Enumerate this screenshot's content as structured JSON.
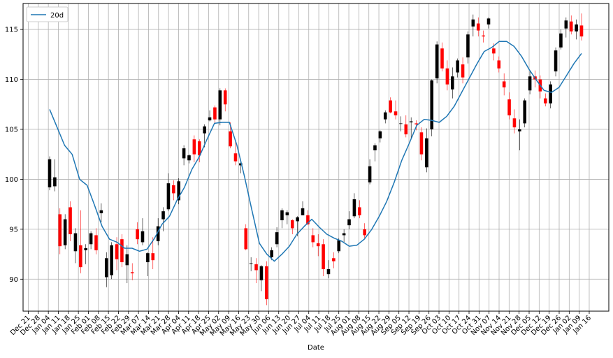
{
  "chart_data": {
    "type": "candlestick",
    "title": "",
    "xlabel": "Date",
    "ylabel": "",
    "ylim": [
      86.8,
      117.6
    ],
    "grid": true,
    "legend_position": "top-left",
    "x_ticks": [
      "Dec 21",
      "Dec 28",
      "Jan 04",
      "Jan 11",
      "Jan 18",
      "Jan 25",
      "Feb 01",
      "Feb 08",
      "Feb 15",
      "Feb 22",
      "Feb 29",
      "Mar 07",
      "Mar 14",
      "Mar 21",
      "Mar 28",
      "Apr 04",
      "Apr 11",
      "Apr 18",
      "Apr 25",
      "May 02",
      "May 09",
      "May 16",
      "May 23",
      "May 30",
      "Jun 06",
      "Jun 13",
      "Jun 20",
      "Jun 27",
      "Jul 04",
      "Jul 11",
      "Jul 18",
      "Jul 25",
      "Aug 01",
      "Aug 08",
      "Aug 15",
      "Aug 22",
      "Aug 29",
      "Sep 05",
      "Sep 12",
      "Sep 19",
      "Sep 26",
      "Oct 03",
      "Oct 10",
      "Oct 17",
      "Oct 24",
      "Oct 31",
      "Nov 07",
      "Nov 14",
      "Nov 21",
      "Nov 28",
      "Dec 05",
      "Dec 12",
      "Dec 19",
      "Dec 26",
      "Jan 02",
      "Jan 09",
      "Jan 16"
    ],
    "y_ticks": [
      90,
      95,
      100,
      105,
      110,
      115
    ],
    "up_color": "#000000",
    "down_color": "#ff0000",
    "series": [
      {
        "name": "20d",
        "color": "#1f77b4",
        "values": [
          107.0,
          105.2,
          103.4,
          102.5,
          100.0,
          99.4,
          97.4,
          95.3,
          94.0,
          93.7,
          93.1,
          93.1,
          92.8,
          93.0,
          94.1,
          95.5,
          96.3,
          97.9,
          99.2,
          101.0,
          102.3,
          104.0,
          105.6,
          105.7,
          105.7,
          103.4,
          100.3,
          96.9,
          93.6,
          92.5,
          91.8,
          92.5,
          93.3,
          94.5,
          95.3,
          96.0,
          95.2,
          94.5,
          94.1,
          93.8,
          93.3,
          93.4,
          94.0,
          95.0,
          96.3,
          97.8,
          99.7,
          101.9,
          103.6,
          105.4,
          106.0,
          105.9,
          105.7,
          106.3,
          107.3,
          108.7,
          110.1,
          111.5,
          112.8,
          113.2,
          113.8,
          113.8,
          113.3,
          112.3,
          111.0,
          109.9,
          108.9,
          108.7,
          109.2,
          110.4,
          111.6,
          112.6
        ]
      }
    ],
    "candles": [
      {
        "o": 99.2,
        "h": 102.3,
        "l": 98.9,
        "c": 102.0
      },
      {
        "o": 99.3,
        "h": 102.0,
        "l": 98.8,
        "c": 100.2
      },
      {
        "o": 96.5,
        "h": 97.1,
        "l": 92.5,
        "c": 93.3
      },
      {
        "o": 93.4,
        "h": 96.5,
        "l": 93.0,
        "c": 96.0
      },
      {
        "o": 97.2,
        "h": 97.8,
        "l": 93.8,
        "c": 94.5
      },
      {
        "o": 92.8,
        "h": 95.1,
        "l": 91.6,
        "c": 94.6
      },
      {
        "o": 93.4,
        "h": 96.9,
        "l": 90.6,
        "c": 91.2
      },
      {
        "o": 92.9,
        "h": 93.5,
        "l": 91.5,
        "c": 93.1
      },
      {
        "o": 93.5,
        "h": 94.8,
        "l": 93.0,
        "c": 94.6
      },
      {
        "o": 94.4,
        "h": 95.1,
        "l": 92.5,
        "c": 92.9
      },
      {
        "o": 96.6,
        "h": 97.6,
        "l": 95.7,
        "c": 96.9
      },
      {
        "o": 90.2,
        "h": 92.7,
        "l": 89.2,
        "c": 92.1
      },
      {
        "o": 90.4,
        "h": 93.7,
        "l": 90.0,
        "c": 93.4
      },
      {
        "o": 93.5,
        "h": 94.2,
        "l": 90.9,
        "c": 92.0
      },
      {
        "o": 94.0,
        "h": 94.5,
        "l": 91.2,
        "c": 91.7
      },
      {
        "o": 91.4,
        "h": 93.4,
        "l": 89.6,
        "c": 92.5
      },
      {
        "o": 90.7,
        "h": 91.6,
        "l": 89.9,
        "c": 90.6
      },
      {
        "o": 95.0,
        "h": 95.7,
        "l": 93.5,
        "c": 94.0
      },
      {
        "o": 93.7,
        "h": 96.1,
        "l": 93.4,
        "c": 94.8
      },
      {
        "o": 91.7,
        "h": 92.7,
        "l": 90.3,
        "c": 92.6
      },
      {
        "o": 92.6,
        "h": 94.2,
        "l": 91.0,
        "c": 91.9
      },
      {
        "o": 93.8,
        "h": 96.1,
        "l": 93.4,
        "c": 95.3
      },
      {
        "o": 96.0,
        "h": 97.2,
        "l": 94.8,
        "c": 96.8
      },
      {
        "o": 97.0,
        "h": 100.6,
        "l": 96.8,
        "c": 99.6
      },
      {
        "o": 99.4,
        "h": 99.9,
        "l": 97.9,
        "c": 98.6
      },
      {
        "o": 97.9,
        "h": 100.1,
        "l": 97.5,
        "c": 99.8
      },
      {
        "o": 102.1,
        "h": 103.4,
        "l": 101.4,
        "c": 103.1
      },
      {
        "o": 101.9,
        "h": 102.5,
        "l": 101.6,
        "c": 102.4
      },
      {
        "o": 104.0,
        "h": 104.4,
        "l": 101.7,
        "c": 102.5
      },
      {
        "o": 103.8,
        "h": 104.0,
        "l": 101.7,
        "c": 102.4
      },
      {
        "o": 104.6,
        "h": 105.5,
        "l": 103.2,
        "c": 105.3
      },
      {
        "o": 105.9,
        "h": 106.9,
        "l": 105.8,
        "c": 106.2
      },
      {
        "o": 107.2,
        "h": 107.4,
        "l": 105.6,
        "c": 106.0
      },
      {
        "o": 106.0,
        "h": 109.1,
        "l": 105.4,
        "c": 108.9
      },
      {
        "o": 108.9,
        "h": 109.1,
        "l": 106.8,
        "c": 107.5
      },
      {
        "o": 104.8,
        "h": 105.7,
        "l": 103.1,
        "c": 103.3
      },
      {
        "o": 102.6,
        "h": 103.8,
        "l": 101.4,
        "c": 101.8
      },
      {
        "o": 101.4,
        "h": 101.8,
        "l": 100.6,
        "c": 101.6
      },
      {
        "o": 95.1,
        "h": 95.5,
        "l": 92.9,
        "c": 93.0
      },
      {
        "o": 91.6,
        "h": 92.2,
        "l": 90.8,
        "c": 91.6
      },
      {
        "o": 91.5,
        "h": 92.1,
        "l": 89.6,
        "c": 90.9
      },
      {
        "o": 89.9,
        "h": 91.4,
        "l": 88.8,
        "c": 91.3
      },
      {
        "o": 91.3,
        "h": 91.8,
        "l": 87.4,
        "c": 88.0
      },
      {
        "o": 92.2,
        "h": 93.2,
        "l": 91.9,
        "c": 92.9
      },
      {
        "o": 93.5,
        "h": 95.2,
        "l": 93.2,
        "c": 94.7
      },
      {
        "o": 95.9,
        "h": 97.1,
        "l": 95.1,
        "c": 96.9
      },
      {
        "o": 96.4,
        "h": 96.9,
        "l": 95.5,
        "c": 96.7
      },
      {
        "o": 95.9,
        "h": 96.0,
        "l": 94.5,
        "c": 95.1
      },
      {
        "o": 95.8,
        "h": 96.3,
        "l": 94.3,
        "c": 96.2
      },
      {
        "o": 96.4,
        "h": 97.8,
        "l": 96.4,
        "c": 97.1
      },
      {
        "o": 96.4,
        "h": 96.9,
        "l": 95.4,
        "c": 95.5
      },
      {
        "o": 94.4,
        "h": 95.1,
        "l": 93.2,
        "c": 93.7
      },
      {
        "o": 93.6,
        "h": 94.5,
        "l": 92.3,
        "c": 93.3
      },
      {
        "o": 93.5,
        "h": 94.0,
        "l": 90.3,
        "c": 91.0
      },
      {
        "o": 90.5,
        "h": 91.9,
        "l": 90.1,
        "c": 91.0
      },
      {
        "o": 92.1,
        "h": 92.7,
        "l": 91.1,
        "c": 91.8
      },
      {
        "o": 92.8,
        "h": 94.1,
        "l": 92.6,
        "c": 93.9
      },
      {
        "o": 94.4,
        "h": 95.0,
        "l": 93.7,
        "c": 94.6
      },
      {
        "o": 95.4,
        "h": 96.8,
        "l": 95.0,
        "c": 96.0
      },
      {
        "o": 96.3,
        "h": 98.6,
        "l": 96.1,
        "c": 98.0
      },
      {
        "o": 97.2,
        "h": 97.9,
        "l": 96.1,
        "c": 96.4
      },
      {
        "o": 95.0,
        "h": 95.6,
        "l": 94.1,
        "c": 94.4
      },
      {
        "o": 99.7,
        "h": 102.0,
        "l": 99.5,
        "c": 101.3
      },
      {
        "o": 102.9,
        "h": 103.6,
        "l": 101.8,
        "c": 103.4
      },
      {
        "o": 104.1,
        "h": 104.9,
        "l": 103.7,
        "c": 104.8
      },
      {
        "o": 106.0,
        "h": 106.9,
        "l": 105.6,
        "c": 106.7
      },
      {
        "o": 107.9,
        "h": 108.2,
        "l": 106.6,
        "c": 106.7
      },
      {
        "o": 106.8,
        "h": 107.9,
        "l": 106.0,
        "c": 106.4
      },
      {
        "o": 105.6,
        "h": 106.3,
        "l": 104.8,
        "c": 105.6
      },
      {
        "o": 105.5,
        "h": 106.4,
        "l": 104.2,
        "c": 104.5
      },
      {
        "o": 105.7,
        "h": 106.2,
        "l": 104.1,
        "c": 105.8
      },
      {
        "o": 105.6,
        "h": 105.9,
        "l": 104.9,
        "c": 105.5
      },
      {
        "o": 104.7,
        "h": 105.2,
        "l": 101.9,
        "c": 102.5
      },
      {
        "o": 101.2,
        "h": 105.1,
        "l": 100.7,
        "c": 104.1
      },
      {
        "o": 105.0,
        "h": 110.0,
        "l": 104.3,
        "c": 109.9
      },
      {
        "o": 110.1,
        "h": 113.8,
        "l": 109.6,
        "c": 113.5
      },
      {
        "o": 113.1,
        "h": 113.7,
        "l": 110.8,
        "c": 111.1
      },
      {
        "o": 111.1,
        "h": 111.9,
        "l": 108.9,
        "c": 109.5
      },
      {
        "o": 109.0,
        "h": 111.2,
        "l": 108.1,
        "c": 110.3
      },
      {
        "o": 110.7,
        "h": 112.1,
        "l": 110.2,
        "c": 111.9
      },
      {
        "o": 111.5,
        "h": 112.2,
        "l": 109.6,
        "c": 110.2
      },
      {
        "o": 112.2,
        "h": 114.8,
        "l": 111.6,
        "c": 114.5
      },
      {
        "o": 115.3,
        "h": 116.5,
        "l": 114.3,
        "c": 116.0
      },
      {
        "o": 115.6,
        "h": 116.2,
        "l": 114.3,
        "c": 114.9
      },
      {
        "o": 114.4,
        "h": 114.9,
        "l": 113.7,
        "c": 114.3
      },
      {
        "o": 115.5,
        "h": 116.2,
        "l": 115.1,
        "c": 116.1
      },
      {
        "o": 113.1,
        "h": 113.6,
        "l": 111.9,
        "c": 112.6
      },
      {
        "o": 111.9,
        "h": 112.3,
        "l": 110.7,
        "c": 111.1
      },
      {
        "o": 109.8,
        "h": 110.6,
        "l": 108.4,
        "c": 109.2
      },
      {
        "o": 108.0,
        "h": 108.7,
        "l": 106.0,
        "c": 106.4
      },
      {
        "o": 106.1,
        "h": 107.0,
        "l": 104.6,
        "c": 105.2
      },
      {
        "o": 104.8,
        "h": 106.0,
        "l": 102.9,
        "c": 105.0
      },
      {
        "o": 105.6,
        "h": 108.1,
        "l": 105.2,
        "c": 107.9
      },
      {
        "o": 108.9,
        "h": 110.8,
        "l": 108.5,
        "c": 110.3
      },
      {
        "o": 110.3,
        "h": 110.9,
        "l": 109.2,
        "c": 110.0
      },
      {
        "o": 110.0,
        "h": 110.4,
        "l": 108.1,
        "c": 108.8
      },
      {
        "o": 108.1,
        "h": 108.6,
        "l": 107.3,
        "c": 107.6
      },
      {
        "o": 107.6,
        "h": 109.8,
        "l": 107.1,
        "c": 109.5
      },
      {
        "o": 110.8,
        "h": 113.2,
        "l": 110.3,
        "c": 112.9
      },
      {
        "o": 113.2,
        "h": 115.0,
        "l": 113.0,
        "c": 114.6
      },
      {
        "o": 115.1,
        "h": 116.2,
        "l": 114.2,
        "c": 115.9
      },
      {
        "o": 115.8,
        "h": 116.4,
        "l": 114.5,
        "c": 114.8
      },
      {
        "o": 114.8,
        "h": 116.0,
        "l": 114.0,
        "c": 115.5
      },
      {
        "o": 115.4,
        "h": 116.6,
        "l": 113.9,
        "c": 114.3
      }
    ]
  }
}
